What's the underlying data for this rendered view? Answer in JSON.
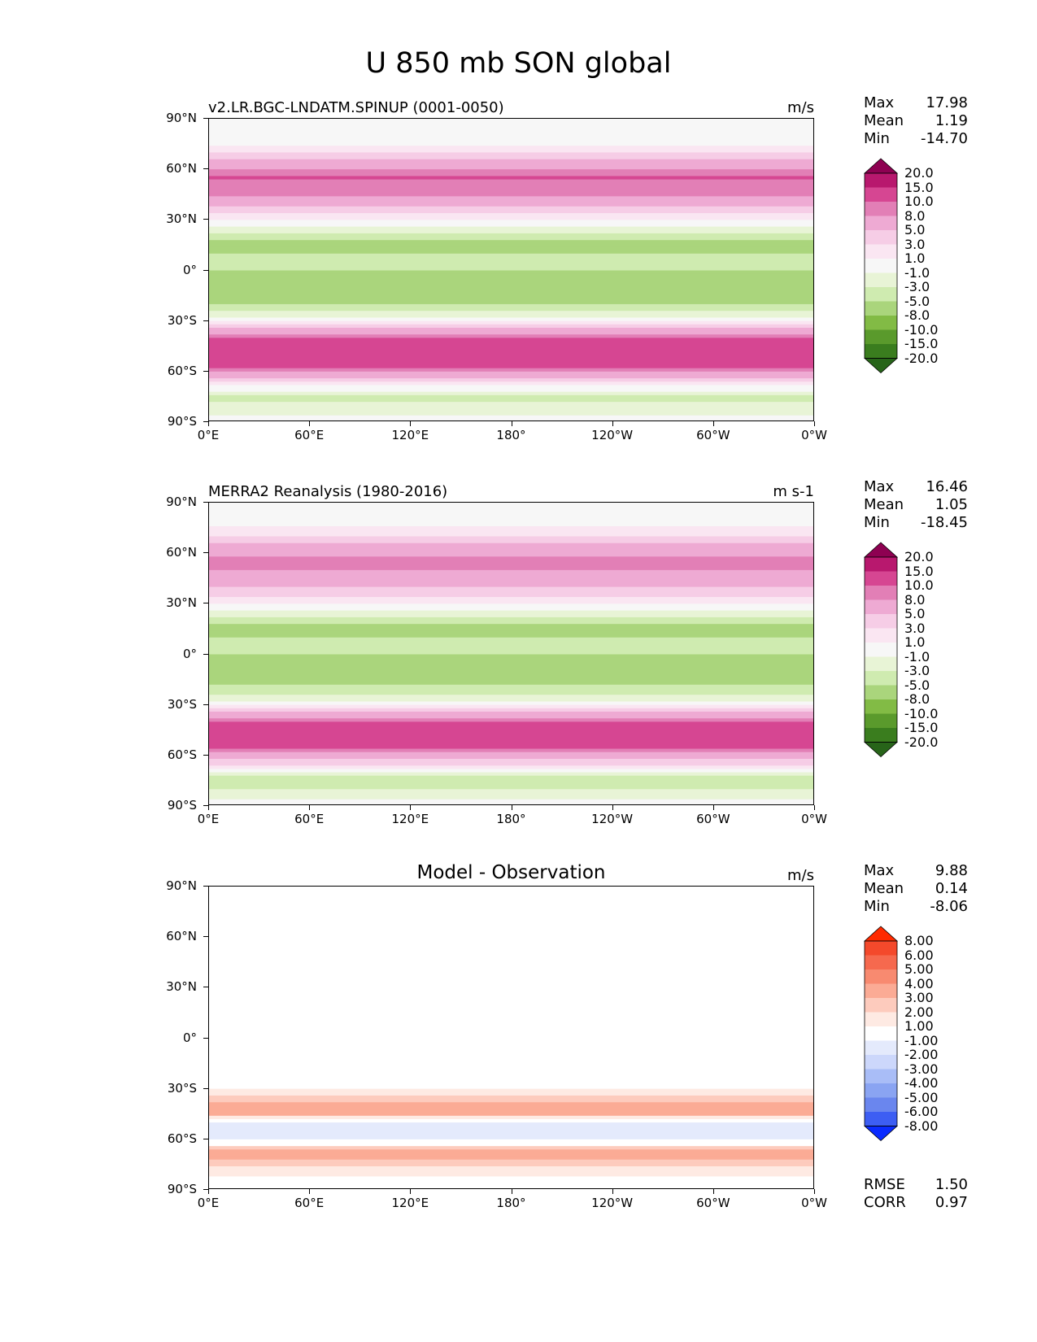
{
  "figure": {
    "title": "U 850 mb SON global"
  },
  "chart_data": [
    {
      "type": "heatmap",
      "panel": "top",
      "title": "v2.LR.BGC-LNDATM.SPINUP (0001-0050)",
      "units": "m/s",
      "stats": {
        "max_label": "Max",
        "max": "17.98",
        "mean_label": "Mean",
        "mean": "1.19",
        "min_label": "Min",
        "min": "-14.70"
      },
      "x_ticks": [
        "0°E",
        "60°E",
        "120°E",
        "180°",
        "120°W",
        "60°W",
        "0°W"
      ],
      "y_ticks": [
        "90°N",
        "60°N",
        "30°N",
        "0°",
        "30°S",
        "60°S",
        "90°S"
      ],
      "xlim": [
        0,
        360
      ],
      "ylim": [
        -90,
        90
      ],
      "colorbar_levels": [
        "20.0",
        "15.0",
        "10.0",
        "8.0",
        "5.0",
        "3.0",
        "1.0",
        "-1.0",
        "-3.0",
        "-5.0",
        "-8.0",
        "-10.0",
        "-15.0",
        "-20.0"
      ],
      "colorbar_colors": [
        "#8e0152",
        "#b8186e",
        "#d64692",
        "#e27fb6",
        "#eeaad3",
        "#f6cde6",
        "#fae6f2",
        "#f7f7f7",
        "#e8f4d6",
        "#cfebb0",
        "#aad57c",
        "#82bb45",
        "#5a9a2c",
        "#3a7d1e",
        "#276419"
      ],
      "zonal_profile": {
        "lat": [
          -90,
          -75,
          -65,
          -55,
          -45,
          -35,
          -25,
          -15,
          -5,
          5,
          15,
          25,
          35,
          45,
          55,
          65,
          75,
          90
        ],
        "u": [
          0,
          -4,
          4,
          12,
          14,
          6,
          -3,
          -7,
          -6,
          -4,
          -6,
          -2,
          3,
          8,
          10,
          5,
          0,
          0
        ]
      }
    },
    {
      "type": "heatmap",
      "panel": "middle",
      "title": "MERRA2 Reanalysis (1980-2016)",
      "units": "m s-1",
      "stats": {
        "max_label": "Max",
        "max": "16.46",
        "mean_label": "Mean",
        "mean": "1.05",
        "min_label": "Min",
        "min": "-18.45"
      },
      "x_ticks": [
        "0°E",
        "60°E",
        "120°E",
        "180°",
        "120°W",
        "60°W",
        "0°W"
      ],
      "y_ticks": [
        "90°N",
        "60°N",
        "30°N",
        "0°",
        "30°S",
        "60°S",
        "90°S"
      ],
      "xlim": [
        0,
        360
      ],
      "ylim": [
        -90,
        90
      ],
      "colorbar_levels": [
        "20.0",
        "15.0",
        "10.0",
        "8.0",
        "5.0",
        "3.0",
        "1.0",
        "-1.0",
        "-3.0",
        "-5.0",
        "-8.0",
        "-10.0",
        "-15.0",
        "-20.0"
      ],
      "colorbar_colors": [
        "#8e0152",
        "#b8186e",
        "#d64692",
        "#e27fb6",
        "#eeaad3",
        "#f6cde6",
        "#fae6f2",
        "#f7f7f7",
        "#e8f4d6",
        "#cfebb0",
        "#aad57c",
        "#82bb45",
        "#5a9a2c",
        "#3a7d1e",
        "#276419"
      ],
      "zonal_profile": {
        "lat": [
          -90,
          -75,
          -65,
          -55,
          -45,
          -35,
          -25,
          -15,
          -5,
          5,
          15,
          25,
          35,
          45,
          55,
          65,
          75,
          90
        ],
        "u": [
          0,
          -5,
          3,
          11,
          13,
          6,
          -3,
          -6,
          -6,
          -4,
          -6,
          -2,
          3,
          7,
          9,
          5,
          1,
          0
        ]
      }
    },
    {
      "type": "heatmap",
      "panel": "bottom",
      "title": "Model - Observation",
      "units": "m/s",
      "stats": {
        "max_label": "Max",
        "max": "9.88",
        "mean_label": "Mean",
        "mean": "0.14",
        "min_label": "Min",
        "min": "-8.06"
      },
      "metrics": {
        "rmse_label": "RMSE",
        "rmse": "1.50",
        "corr_label": "CORR",
        "corr": "0.97"
      },
      "x_ticks": [
        "0°E",
        "60°E",
        "120°E",
        "180°",
        "120°W",
        "60°W",
        "0°W"
      ],
      "y_ticks": [
        "90°N",
        "60°N",
        "30°N",
        "0°",
        "30°S",
        "60°S",
        "90°S"
      ],
      "xlim": [
        0,
        360
      ],
      "ylim": [
        -90,
        90
      ],
      "colorbar_levels": [
        "8.00",
        "6.00",
        "5.00",
        "4.00",
        "3.00",
        "2.00",
        "1.00",
        "-1.00",
        "-2.00",
        "-3.00",
        "-4.00",
        "-5.00",
        "-6.00",
        "-8.00"
      ],
      "colorbar_colors": [
        "#ff2a00",
        "#f4492b",
        "#f6694e",
        "#f88a70",
        "#fbab95",
        "#fdcbbd",
        "#feeae3",
        "#ffffff",
        "#e4eafc",
        "#ccd7fb",
        "#a9bdf7",
        "#8aa4f2",
        "#6a86ee",
        "#3d5ef3",
        "#0a2bff"
      ],
      "zonal_profile": {
        "lat": [
          -90,
          -75,
          -68,
          -60,
          -52,
          -45,
          -38,
          -30,
          -20,
          -10,
          0,
          10,
          20,
          30,
          40,
          50,
          60,
          75,
          90
        ],
        "u": [
          0,
          2,
          4,
          -1,
          -2,
          3,
          3,
          1,
          0,
          -1,
          0,
          0,
          1,
          0,
          0,
          1,
          0,
          -1,
          0
        ]
      }
    }
  ]
}
